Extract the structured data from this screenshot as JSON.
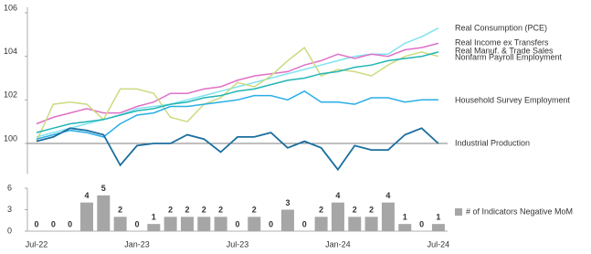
{
  "chart_data": [
    {
      "type": "line",
      "ylim": [
        98.6,
        106
      ],
      "yticks": [
        100,
        102,
        104,
        106
      ],
      "series": [
        {
          "name": "Real Consumption (PCE)",
          "color": "#7fe3f0",
          "values": [
            100.3,
            100.5,
            100.7,
            100.9,
            101.1,
            101.3,
            101.6,
            101.7,
            101.8,
            102.0,
            102.2,
            102.4,
            102.6,
            102.8,
            103.0,
            103.2,
            103.4,
            103.6,
            103.8,
            104.0,
            104.1,
            104.1,
            104.6,
            104.9,
            105.3
          ]
        },
        {
          "name": "Real Income ex Transfers",
          "color": "#e070c8",
          "values": [
            100.9,
            101.2,
            101.4,
            101.6,
            101.4,
            101.4,
            101.7,
            101.9,
            102.3,
            102.3,
            102.5,
            102.6,
            102.9,
            103.1,
            103.2,
            103.3,
            103.6,
            103.8,
            104.1,
            103.9,
            104.1,
            104.0,
            104.3,
            104.4,
            104.6
          ]
        },
        {
          "name": "Real Manuf. & Trade Sales",
          "color": "#cdda80",
          "values": [
            100.1,
            101.8,
            101.9,
            101.8,
            101.1,
            102.5,
            102.5,
            102.3,
            101.2,
            101.0,
            101.8,
            102.1,
            102.8,
            102.6,
            103.1,
            103.8,
            104.4,
            103.1,
            103.4,
            103.3,
            103.1,
            103.6,
            104.0,
            104.2,
            104.0
          ]
        },
        {
          "name": "Nonfarm Payroll Employment",
          "color": "#22b5b5",
          "values": [
            100.5,
            100.7,
            100.9,
            101.0,
            101.1,
            101.3,
            101.5,
            101.6,
            101.8,
            101.9,
            102.1,
            102.2,
            102.4,
            102.5,
            102.7,
            102.9,
            103.0,
            103.2,
            103.3,
            103.5,
            103.6,
            103.8,
            103.9,
            104.0,
            104.2
          ]
        },
        {
          "name": "Household Survey Employment",
          "color": "#2aaee6",
          "values": [
            100.2,
            100.4,
            100.6,
            100.5,
            100.3,
            100.9,
            101.3,
            101.4,
            101.7,
            101.7,
            101.8,
            101.9,
            102.0,
            102.2,
            102.2,
            102.0,
            102.4,
            101.9,
            101.9,
            101.8,
            102.1,
            102.1,
            101.9,
            102.0,
            102.0
          ]
        },
        {
          "name": "Industrial Production",
          "color": "#1b6e9e",
          "values": [
            100.1,
            100.3,
            100.7,
            100.6,
            100.4,
            99.0,
            99.9,
            100.0,
            100.0,
            100.4,
            100.2,
            99.6,
            100.3,
            100.3,
            100.5,
            99.8,
            100.1,
            99.8,
            98.8,
            99.9,
            99.7,
            99.7,
            100.4,
            100.7,
            100.0
          ]
        }
      ]
    },
    {
      "type": "bar",
      "categories": [
        "Jul-22",
        null,
        null,
        null,
        null,
        null,
        "Jan-23",
        null,
        null,
        null,
        null,
        null,
        "Jul-23",
        null,
        null,
        null,
        null,
        null,
        "Jan-24",
        null,
        null,
        null,
        null,
        null,
        "Jul-24"
      ],
      "ylim": [
        0,
        6
      ],
      "yticks": [
        0,
        3,
        6
      ],
      "series": [
        {
          "name": "# of Indicators Negative MoM",
          "color": "#a6a6a6",
          "values": [
            0,
            0,
            0,
            4,
            5,
            2,
            0,
            1,
            2,
            2,
            2,
            2,
            0,
            2,
            0,
            3,
            0,
            2,
            4,
            2,
            2,
            4,
            1,
            0,
            1
          ]
        }
      ]
    }
  ]
}
